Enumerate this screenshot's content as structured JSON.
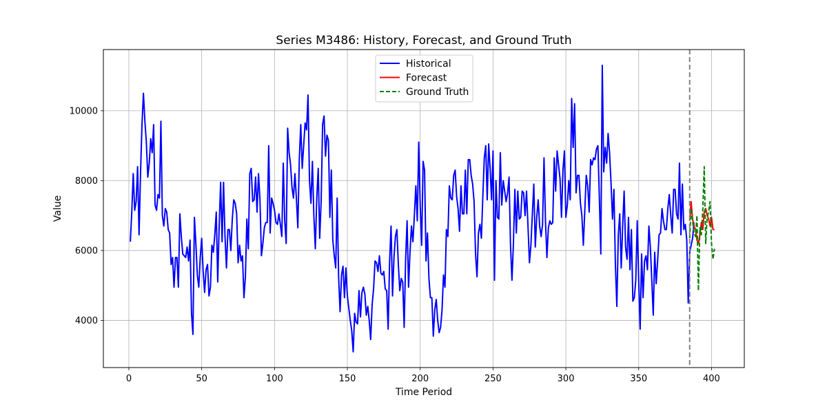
{
  "chart_data": {
    "type": "line",
    "title": "Series M3486: History, Forecast, and Ground Truth",
    "xlabel": "Time Period",
    "ylabel": "Value",
    "xlim": [
      -17.5,
      422.5
    ],
    "ylim": [
      2650,
      11750
    ],
    "xticks": [
      0,
      50,
      100,
      150,
      200,
      250,
      300,
      350,
      400
    ],
    "yticks": [
      4000,
      6000,
      8000,
      10000
    ],
    "grid": true,
    "legend_position": "upper-center",
    "forecast_start": 385,
    "series": [
      {
        "name": "Historical",
        "color": "#0000ff",
        "style": "solid",
        "x_start": 1,
        "values": [
          6250,
          7100,
          8200,
          7150,
          7400,
          8400,
          6450,
          8200,
          9600,
          10500,
          9700,
          9100,
          8100,
          8500,
          9200,
          8800,
          9600,
          7300,
          7150,
          7600,
          7500,
          9700,
          7000,
          6700,
          7200,
          7100,
          6600,
          6500,
          5600,
          5800,
          4950,
          5800,
          5800,
          4950,
          7050,
          6400,
          5900,
          5850,
          5800,
          6100,
          5700,
          6300,
          4200,
          3600,
          6950,
          6200,
          5300,
          4950,
          5800,
          6350,
          5400,
          4800,
          5450,
          5600,
          4700,
          4950,
          6150,
          5950,
          6450,
          7100,
          5100,
          6700,
          7950,
          6250,
          7950,
          6400,
          5500,
          6600,
          6600,
          6000,
          6900,
          7450,
          7350,
          7050,
          5650,
          6150,
          5700,
          5850,
          4650,
          5250,
          6900,
          6050,
          8200,
          8350,
          7400,
          7450,
          8100,
          7100,
          8200,
          7450,
          5850,
          6200,
          6650,
          6800,
          6800,
          9000,
          6500,
          7500,
          7350,
          7150,
          6800,
          6750,
          7050,
          6750,
          6400,
          8500,
          6850,
          6200,
          9500,
          8800,
          8450,
          7800,
          7500,
          8200,
          7500,
          6650,
          8600,
          9600,
          8350,
          9000,
          9650,
          9450,
          10450,
          8000,
          7350,
          8550,
          7000,
          6050,
          7500,
          8350,
          6350,
          7400,
          9600,
          9850,
          8700,
          9300,
          9150,
          6950,
          8300,
          6300,
          5850,
          5500,
          7500,
          5250,
          4250,
          5300,
          5550,
          4650,
          5500,
          4700,
          4350,
          4000,
          3700,
          3100,
          4200,
          3950,
          3900,
          4850,
          4100,
          4800,
          4950,
          4750,
          4150,
          4400,
          4000,
          3450,
          4450,
          4900,
          5700,
          5650,
          5400,
          5850,
          5350,
          5300,
          5400,
          4900,
          4850,
          3750,
          5700,
          6700,
          4700,
          5800,
          6400,
          6600,
          5600,
          4850,
          5200,
          5100,
          3800,
          5750,
          6850,
          4950,
          5950,
          6700,
          6250,
          7000,
          7850,
          6850,
          9100,
          7300,
          6150,
          8550,
          8300,
          5700,
          6500,
          5200,
          4650,
          4650,
          3550,
          4300,
          4600,
          4000,
          3650,
          3800,
          4300,
          5300,
          4950,
          6600,
          6400,
          7850,
          7500,
          7450,
          8150,
          8300,
          7550,
          7200,
          6550,
          7850,
          7050,
          7050,
          8300,
          7050,
          8600,
          8600,
          8150,
          7900,
          7400,
          5900,
          5250,
          6500,
          6750,
          6350,
          7550,
          8650,
          9000,
          7450,
          9050,
          8350,
          7450,
          8850,
          5150,
          8000,
          6950,
          6900,
          8800,
          7300,
          8000,
          7700,
          7400,
          7650,
          8100,
          6150,
          5150,
          6200,
          7750,
          6500,
          7700,
          6900,
          6950,
          7700,
          7650,
          7000,
          7700,
          6700,
          5650,
          6150,
          7050,
          7900,
          6100,
          6950,
          7450,
          6700,
          6400,
          6750,
          8650,
          6850,
          5800,
          6650,
          6850,
          6750,
          6800,
          8650,
          7700,
          8850,
          8450,
          8050,
          6950,
          8300,
          8850,
          6950,
          7300,
          8000,
          7450,
          10350,
          8950,
          10200,
          7650,
          8150,
          8150,
          7350,
          7000,
          6150,
          7150,
          8150,
          7850,
          7100,
          8600,
          8450,
          8650,
          8600,
          8900,
          9000,
          7500,
          5900,
          11300,
          8250,
          8950,
          8500,
          9350,
          8800,
          7950,
          6900,
          7750,
          5600,
          4400,
          6450,
          7050,
          5500,
          6700,
          7700,
          6100,
          5750,
          6950,
          5450,
          6600,
          4550,
          4650,
          5150,
          6850,
          5150,
          3750,
          5900,
          4650,
          5700,
          5850,
          5450,
          6700,
          6100,
          5150,
          4150,
          5950,
          5050,
          5700,
          6450,
          6500,
          7200,
          6850,
          6600,
          6600,
          7200,
          7600,
          7000,
          6500,
          7750,
          7750,
          7050,
          6900,
          8500,
          6450,
          7900,
          6600,
          6750,
          6300,
          4500,
          5950,
          6150,
          6350,
          6800
        ]
      },
      {
        "name": "Forecast",
        "color": "#ff0000",
        "style": "solid",
        "x_start": 385,
        "values": [
          6850,
          7400,
          6900,
          6700,
          6600,
          6300,
          6200,
          6450,
          6800,
          6600,
          7100,
          7200,
          7000,
          6900,
          6700,
          6950,
          6600,
          6600
        ]
      },
      {
        "name": "Ground Truth",
        "color": "#008000",
        "style": "dashed",
        "x_start": 385,
        "values": [
          6350,
          7200,
          6850,
          6500,
          6400,
          7000,
          4850,
          6650,
          6450,
          7150,
          8400,
          6200,
          6950,
          7100,
          7400,
          6200,
          5750,
          6050
        ]
      }
    ]
  }
}
